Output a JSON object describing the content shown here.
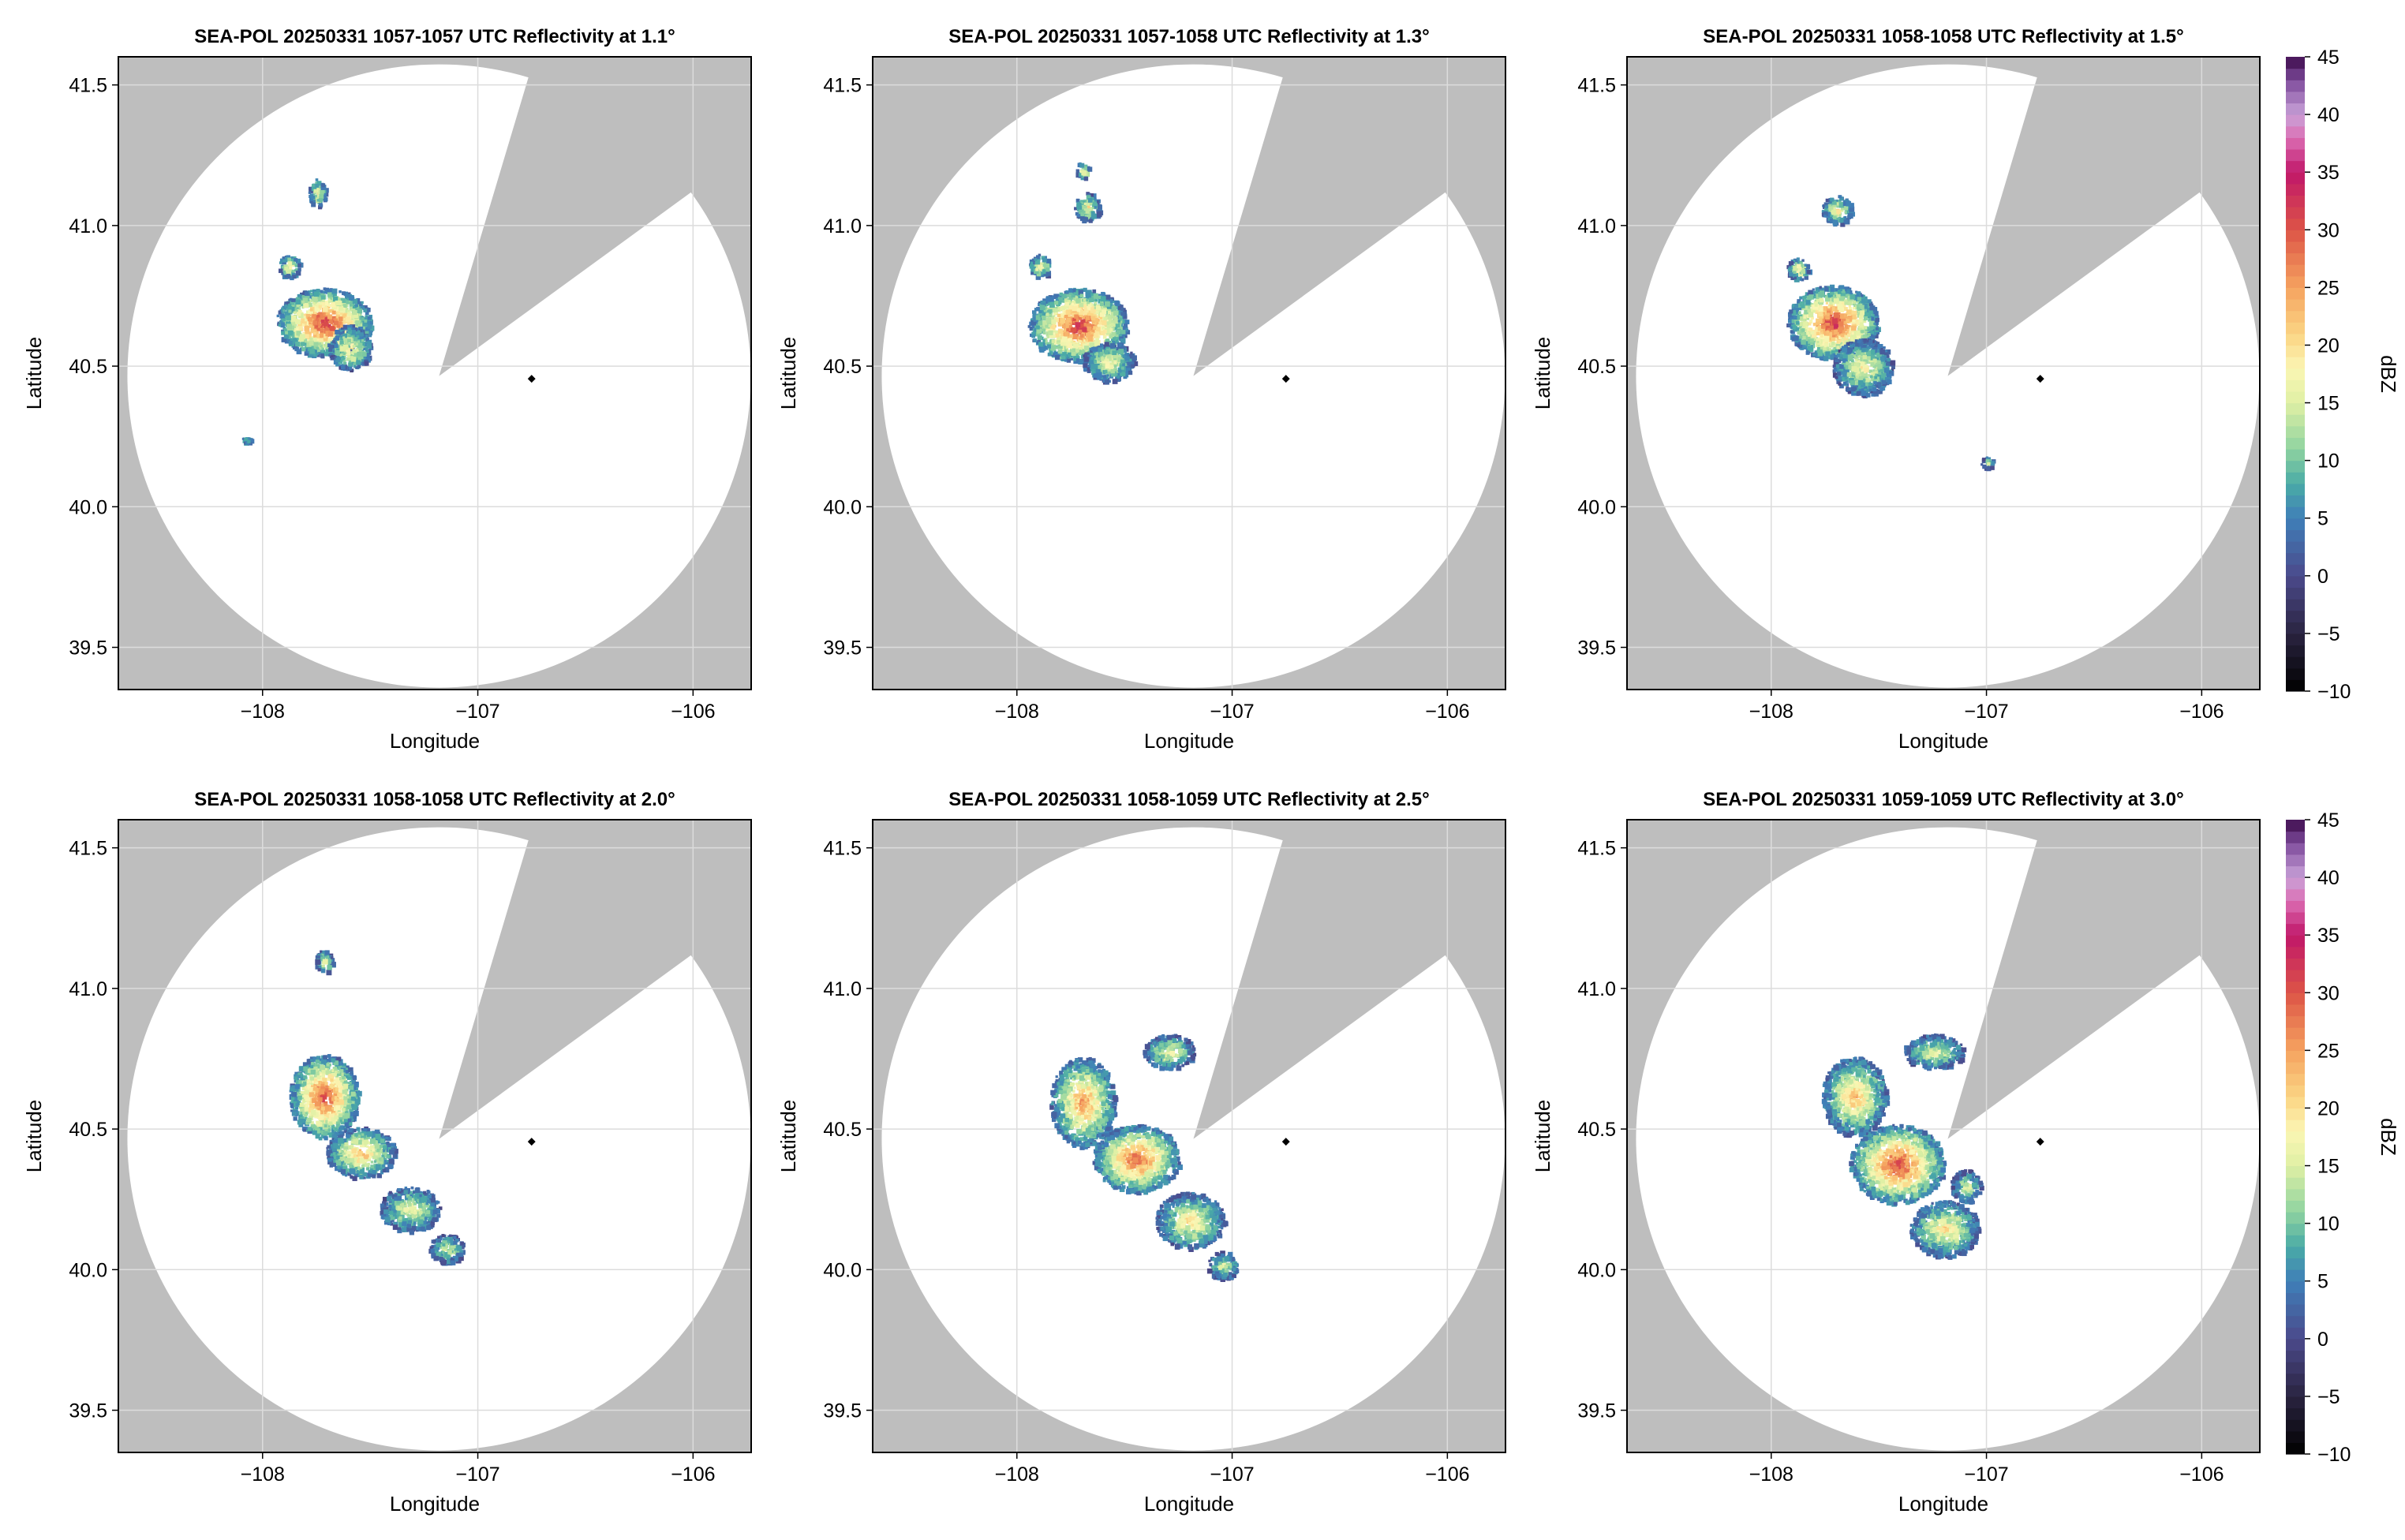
{
  "figure": {
    "colorbar_label": "dBZ",
    "colorbar_ticks": [
      -10,
      -5,
      0,
      5,
      10,
      15,
      20,
      25,
      30,
      35,
      40,
      45
    ],
    "colors": {
      "masked_background": "#bebebe",
      "radar_coverage": "#ffffff",
      "grid": "#dcdcdc",
      "radar_site_marker": "#000000"
    },
    "colormap_stops": [
      {
        "v": -10,
        "c": "#000000"
      },
      {
        "v": -5,
        "c": "#2a2440"
      },
      {
        "v": 0,
        "c": "#4b4a8c"
      },
      {
        "v": 5,
        "c": "#3f7fb8"
      },
      {
        "v": 8,
        "c": "#4aaba6"
      },
      {
        "v": 11,
        "c": "#8fd3a0"
      },
      {
        "v": 15,
        "c": "#dff0a4"
      },
      {
        "v": 18,
        "c": "#fbf6b4"
      },
      {
        "v": 21,
        "c": "#fbd483"
      },
      {
        "v": 25,
        "c": "#f5a35f"
      },
      {
        "v": 30,
        "c": "#dd5446"
      },
      {
        "v": 35,
        "c": "#c0176a"
      },
      {
        "v": 38,
        "c": "#dc6fb4"
      },
      {
        "v": 40,
        "c": "#c9a1d8"
      },
      {
        "v": 43,
        "c": "#7d4b9b"
      },
      {
        "v": 45,
        "c": "#3c0a4a"
      }
    ]
  },
  "chart_data": [
    {
      "type": "heatmap",
      "title": "SEA-POL 20250331 1057-1057 UTC Reflectivity at 1.1°",
      "xlabel": "Longitude",
      "ylabel": "Latitude",
      "xlim": [
        -108.67,
        -105.73
      ],
      "ylim": [
        39.35,
        41.6
      ],
      "xticks": [
        -108,
        -107,
        -106
      ],
      "yticks": [
        39.5,
        40.0,
        40.5,
        41.0,
        41.5
      ],
      "grid": true,
      "radar_site": {
        "lon": -106.75,
        "lat": 40.455
      },
      "echoes": [
        {
          "lon": -107.72,
          "lat": 40.66,
          "dlon": 0.22,
          "dlat": 0.12,
          "peak_dbz": 27
        },
        {
          "lon": -107.6,
          "lat": 40.57,
          "dlon": 0.1,
          "dlat": 0.08,
          "peak_dbz": 14
        },
        {
          "lon": -107.88,
          "lat": 40.86,
          "dlon": 0.05,
          "dlat": 0.04,
          "peak_dbz": 15
        },
        {
          "lon": -107.75,
          "lat": 41.12,
          "dlon": 0.04,
          "dlat": 0.05,
          "peak_dbz": 14
        },
        {
          "lon": -108.08,
          "lat": 40.24,
          "dlon": 0.02,
          "dlat": 0.01,
          "peak_dbz": 10
        }
      ]
    },
    {
      "type": "heatmap",
      "title": "SEA-POL 20250331 1057-1058 UTC Reflectivity at 1.3°",
      "xlabel": "Longitude",
      "ylabel": "Latitude",
      "xlim": [
        -108.67,
        -105.73
      ],
      "ylim": [
        39.35,
        41.6
      ],
      "xticks": [
        -108,
        -107,
        -106
      ],
      "yticks": [
        39.5,
        40.0,
        40.5,
        41.0,
        41.5
      ],
      "grid": true,
      "radar_site": {
        "lon": -106.75,
        "lat": 40.455
      },
      "echoes": [
        {
          "lon": -107.72,
          "lat": 40.65,
          "dlon": 0.23,
          "dlat": 0.13,
          "peak_dbz": 27
        },
        {
          "lon": -107.58,
          "lat": 40.52,
          "dlon": 0.12,
          "dlat": 0.07,
          "peak_dbz": 13
        },
        {
          "lon": -107.9,
          "lat": 40.86,
          "dlon": 0.05,
          "dlat": 0.04,
          "peak_dbz": 15
        },
        {
          "lon": -107.68,
          "lat": 41.07,
          "dlon": 0.06,
          "dlat": 0.05,
          "peak_dbz": 14
        },
        {
          "lon": -107.7,
          "lat": 41.2,
          "dlon": 0.03,
          "dlat": 0.03,
          "peak_dbz": 14
        }
      ]
    },
    {
      "type": "heatmap",
      "title": "SEA-POL 20250331 1058-1058 UTC Reflectivity at 1.5°",
      "xlabel": "Longitude",
      "ylabel": "Latitude",
      "xlim": [
        -108.67,
        -105.73
      ],
      "ylim": [
        39.35,
        41.6
      ],
      "xticks": [
        -108,
        -107,
        -106
      ],
      "yticks": [
        39.5,
        40.0,
        40.5,
        41.0,
        41.5
      ],
      "grid": true,
      "radar_site": {
        "lon": -106.75,
        "lat": 40.455
      },
      "echoes": [
        {
          "lon": -107.72,
          "lat": 40.66,
          "dlon": 0.21,
          "dlat": 0.13,
          "peak_dbz": 27
        },
        {
          "lon": -107.58,
          "lat": 40.5,
          "dlon": 0.14,
          "dlat": 0.1,
          "peak_dbz": 13
        },
        {
          "lon": -107.7,
          "lat": 41.06,
          "dlon": 0.07,
          "dlat": 0.05,
          "peak_dbz": 14
        },
        {
          "lon": -107.88,
          "lat": 40.85,
          "dlon": 0.05,
          "dlat": 0.04,
          "peak_dbz": 15
        },
        {
          "lon": -107.0,
          "lat": 40.16,
          "dlon": 0.03,
          "dlat": 0.02,
          "peak_dbz": 8
        }
      ]
    },
    {
      "type": "heatmap",
      "title": "SEA-POL 20250331 1058-1058 UTC Reflectivity at 2.0°",
      "xlabel": "Longitude",
      "ylabel": "Latitude",
      "xlim": [
        -108.67,
        -105.73
      ],
      "ylim": [
        39.35,
        41.6
      ],
      "xticks": [
        -108,
        -107,
        -106
      ],
      "yticks": [
        39.5,
        40.0,
        40.5,
        41.0,
        41.5
      ],
      "grid": true,
      "radar_site": {
        "lon": -106.75,
        "lat": 40.455
      },
      "echoes": [
        {
          "lon": -107.72,
          "lat": 40.62,
          "dlon": 0.16,
          "dlat": 0.15,
          "peak_dbz": 26
        },
        {
          "lon": -107.55,
          "lat": 40.42,
          "dlon": 0.16,
          "dlat": 0.09,
          "peak_dbz": 18
        },
        {
          "lon": -107.32,
          "lat": 40.22,
          "dlon": 0.14,
          "dlat": 0.08,
          "peak_dbz": 12
        },
        {
          "lon": -107.15,
          "lat": 40.08,
          "dlon": 0.08,
          "dlat": 0.05,
          "peak_dbz": 10
        },
        {
          "lon": -107.72,
          "lat": 41.1,
          "dlon": 0.04,
          "dlat": 0.04,
          "peak_dbz": 14
        }
      ]
    },
    {
      "type": "heatmap",
      "title": "SEA-POL 20250331 1058-1059 UTC Reflectivity at 2.5°",
      "xlabel": "Longitude",
      "ylabel": "Latitude",
      "xlim": [
        -108.67,
        -105.73
      ],
      "ylim": [
        39.35,
        41.6
      ],
      "xticks": [
        -108,
        -107,
        -106
      ],
      "yticks": [
        39.5,
        40.0,
        40.5,
        41.0,
        41.5
      ],
      "grid": true,
      "radar_site": {
        "lon": -106.75,
        "lat": 40.455
      },
      "echoes": [
        {
          "lon": -107.7,
          "lat": 40.6,
          "dlon": 0.15,
          "dlat": 0.16,
          "peak_dbz": 20
        },
        {
          "lon": -107.45,
          "lat": 40.4,
          "dlon": 0.2,
          "dlat": 0.12,
          "peak_dbz": 24
        },
        {
          "lon": -107.2,
          "lat": 40.18,
          "dlon": 0.16,
          "dlat": 0.1,
          "peak_dbz": 15
        },
        {
          "lon": -107.05,
          "lat": 40.02,
          "dlon": 0.07,
          "dlat": 0.05,
          "peak_dbz": 10
        },
        {
          "lon": -107.3,
          "lat": 40.78,
          "dlon": 0.12,
          "dlat": 0.06,
          "peak_dbz": 12
        }
      ]
    },
    {
      "type": "heatmap",
      "title": "SEA-POL 20250331 1059-1059 UTC Reflectivity at 3.0°",
      "xlabel": "Longitude",
      "ylabel": "Latitude",
      "xlim": [
        -108.67,
        -105.73
      ],
      "ylim": [
        39.35,
        41.6
      ],
      "xticks": [
        -108,
        -107,
        -106
      ],
      "yticks": [
        39.5,
        40.0,
        40.5,
        41.0,
        41.5
      ],
      "grid": true,
      "radar_site": {
        "lon": -106.75,
        "lat": 40.455
      },
      "echoes": [
        {
          "lon": -107.62,
          "lat": 40.62,
          "dlon": 0.15,
          "dlat": 0.14,
          "peak_dbz": 18
        },
        {
          "lon": -107.42,
          "lat": 40.38,
          "dlon": 0.22,
          "dlat": 0.14,
          "peak_dbz": 26
        },
        {
          "lon": -107.2,
          "lat": 40.15,
          "dlon": 0.16,
          "dlat": 0.1,
          "peak_dbz": 15
        },
        {
          "lon": -107.1,
          "lat": 40.3,
          "dlon": 0.07,
          "dlat": 0.06,
          "peak_dbz": 10
        },
        {
          "lon": -107.25,
          "lat": 40.78,
          "dlon": 0.14,
          "dlat": 0.06,
          "peak_dbz": 12
        }
      ]
    }
  ]
}
